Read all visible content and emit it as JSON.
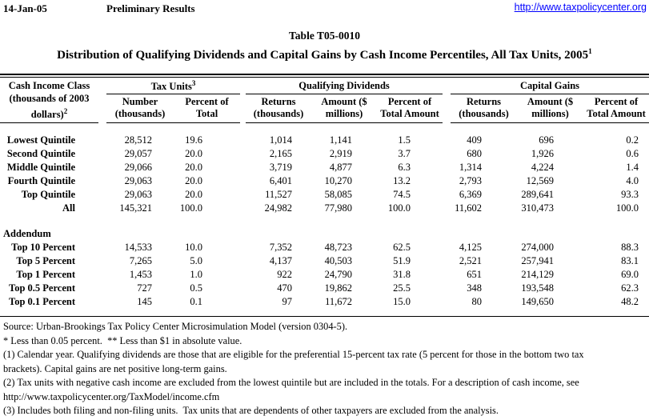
{
  "page": {
    "date": "14-Jan-05",
    "status": "Preliminary Results",
    "site_url": "http://www.taxpolicycenter.org",
    "link_color": "#0000ff",
    "text_color": "#000000",
    "background_color": "#ffffff"
  },
  "title": {
    "line1": "Table T05-0010",
    "line2": "Distribution of Qualifying Dividends and Capital Gains by Cash Income Percentiles, All Tax Units, 2005",
    "line2_sup": "1"
  },
  "table": {
    "col1_header": {
      "lines": [
        "Cash Income Class",
        "(thousands of 2003",
        "dollars)"
      ],
      "sup": "2"
    },
    "groups": [
      {
        "label": "Tax Units",
        "sup": "3",
        "cols": [
          [
            "Number",
            "(thousands)"
          ],
          [
            "Percent of",
            "Total"
          ]
        ]
      },
      {
        "label": "Qualifying Dividends",
        "sup": "",
        "cols": [
          [
            "Returns",
            "(thousands)"
          ],
          [
            "Amount ($",
            "millions)"
          ],
          [
            "Percent of",
            "Total Amount"
          ]
        ]
      },
      {
        "label": "Capital Gains",
        "sup": "",
        "cols": [
          [
            "Returns",
            "(thousands)"
          ],
          [
            "Amount ($",
            "millions)"
          ],
          [
            "Percent of",
            "Total Amount"
          ]
        ]
      }
    ],
    "rows": [
      {
        "label": "Lowest Quintile",
        "values": [
          "28,512",
          "19.6",
          "1,014",
          "1,141",
          "1.5",
          "409",
          "696",
          "0.2"
        ]
      },
      {
        "label": "Second Quintile",
        "values": [
          "29,057",
          "20.0",
          "2,165",
          "2,919",
          "3.7",
          "680",
          "1,926",
          "0.6"
        ]
      },
      {
        "label": "Middle Quintile",
        "values": [
          "29,066",
          "20.0",
          "3,719",
          "4,877",
          "6.3",
          "1,314",
          "4,224",
          "1.4"
        ]
      },
      {
        "label": "Fourth Quintile",
        "values": [
          "29,063",
          "20.0",
          "6,401",
          "10,270",
          "13.2",
          "2,793",
          "12,569",
          "4.0"
        ]
      },
      {
        "label": "Top Quintile",
        "values": [
          "29,063",
          "20.0",
          "11,527",
          "58,085",
          "74.5",
          "6,369",
          "289,641",
          "93.3"
        ]
      },
      {
        "label": "All",
        "values": [
          "145,321",
          "100.0",
          "24,982",
          "77,980",
          "100.0",
          "11,602",
          "310,473",
          "100.0"
        ]
      },
      {
        "section": "Addendum"
      },
      {
        "label": "Top 10 Percent",
        "values": [
          "14,533",
          "10.0",
          "7,352",
          "48,723",
          "62.5",
          "4,125",
          "274,000",
          "88.3"
        ]
      },
      {
        "label": "Top 5 Percent",
        "values": [
          "7,265",
          "5.0",
          "4,137",
          "40,503",
          "51.9",
          "2,521",
          "257,941",
          "83.1"
        ]
      },
      {
        "label": "Top 1 Percent",
        "values": [
          "1,453",
          "1.0",
          "922",
          "24,790",
          "31.8",
          "651",
          "214,129",
          "69.0"
        ]
      },
      {
        "label": "Top 0.5 Percent",
        "values": [
          "727",
          "0.5",
          "470",
          "19,862",
          "25.5",
          "348",
          "193,548",
          "62.3"
        ]
      },
      {
        "label": "Top 0.1 Percent",
        "values": [
          "145",
          "0.1",
          "97",
          "11,672",
          "15.0",
          "80",
          "149,650",
          "48.2"
        ]
      }
    ]
  },
  "footnotes": {
    "lines": [
      "Source: Urban-Brookings Tax Policy Center Microsimulation Model (version 0304-5).",
      "* Less than 0.05 percent.  ** Less than $1 in absolute value.",
      "(1) Calendar year. Qualifying dividends are those that are eligible for the preferential 15-percent tax rate (5 percent for those in the bottom two tax",
      "brackets). Capital gains are net positive long-term gains.",
      "(2) Tax units with negative cash income are excluded from the lowest quintile but are included in the totals. For a description of cash income, see",
      "http://www.taxpolicycenter.org/TaxModel/income.cfm",
      "(3) Includes both filing and non-filing units.  Tax units that are dependents of other taxpayers are excluded from the analysis."
    ]
  }
}
